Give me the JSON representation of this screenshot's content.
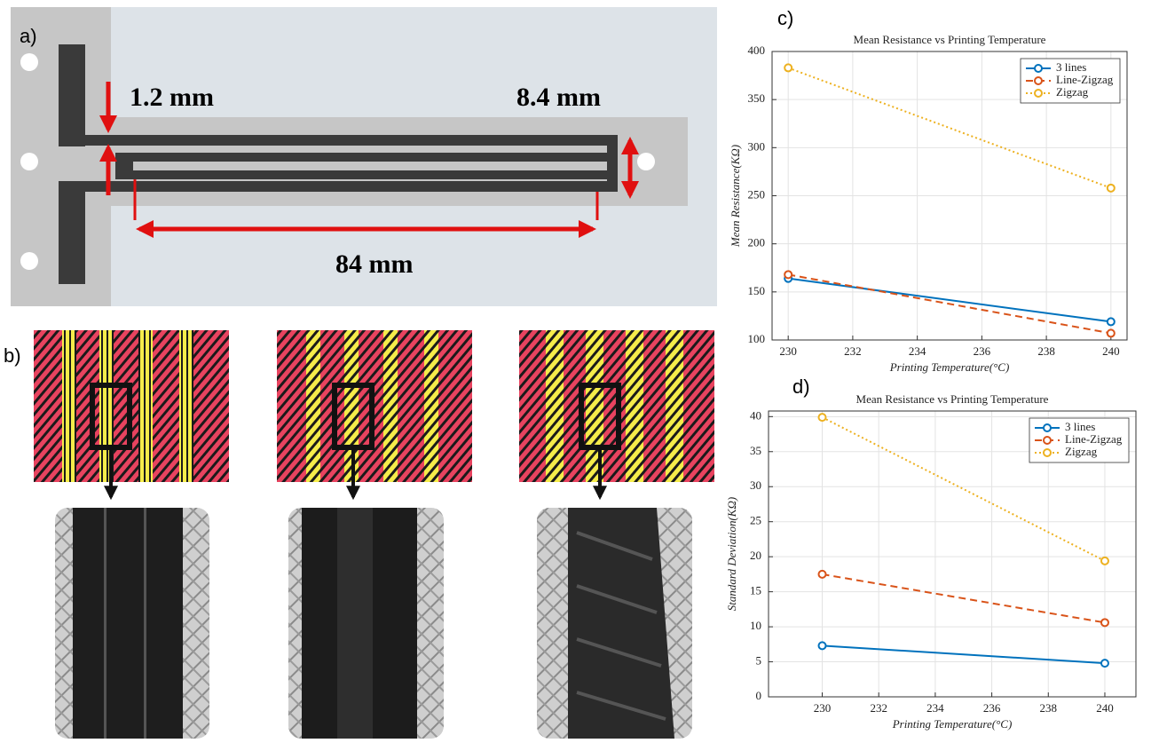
{
  "panel_labels": [
    "a)",
    "b)",
    "c)",
    "d)"
  ],
  "dimensions": {
    "gap": "1.2 mm",
    "width": "8.4 mm",
    "length": "84 mm"
  },
  "chart_data": [
    {
      "type": "line",
      "title": "Mean Resistance vs Printing Temperature",
      "x_label": "Printing Temperature(°C)",
      "y_label": "Mean Resistance(KΩ)",
      "x": [
        230,
        240
      ],
      "series": [
        {
          "name": "3 lines",
          "color": "#0072bd",
          "line_style": "solid",
          "values": [
            164,
            119
          ]
        },
        {
          "name": "Line-Zigzag",
          "color": "#d95319",
          "line_style": "dashed",
          "values": [
            168,
            107
          ]
        },
        {
          "name": "Zigzag",
          "color": "#edb120",
          "line_style": "dotted",
          "values": [
            383,
            258
          ]
        }
      ],
      "xlim": [
        229.5,
        240.5
      ],
      "xticks": [
        230,
        232,
        234,
        236,
        238,
        240
      ],
      "ylim": [
        100,
        400
      ],
      "yticks": [
        100,
        150,
        200,
        250,
        300,
        350,
        400
      ],
      "grid": true,
      "legend": "top-right"
    },
    {
      "type": "line",
      "title": "Mean Resistance vs Printing Temperature",
      "x_label": "Printing Temperature(°C)",
      "y_label": "Standard Deviation(KΩ)",
      "x": [
        230,
        240
      ],
      "series": [
        {
          "name": "3 lines",
          "color": "#0072bd",
          "line_style": "solid",
          "values": [
            7.3,
            4.8
          ]
        },
        {
          "name": "Line-Zigzag",
          "color": "#d95319",
          "line_style": "dashed",
          "values": [
            17.5,
            10.6
          ]
        },
        {
          "name": "Zigzag",
          "color": "#edb120",
          "line_style": "dotted",
          "values": [
            39.9,
            19.4
          ]
        }
      ],
      "xlim": [
        228.1,
        241.1
      ],
      "xticks": [
        230,
        232,
        234,
        236,
        238,
        240
      ],
      "ylim": [
        0,
        40.8
      ],
      "yticks": [
        0,
        5,
        10,
        15,
        20,
        25,
        30,
        35,
        40
      ],
      "grid": true,
      "legend": "top-right"
    }
  ]
}
